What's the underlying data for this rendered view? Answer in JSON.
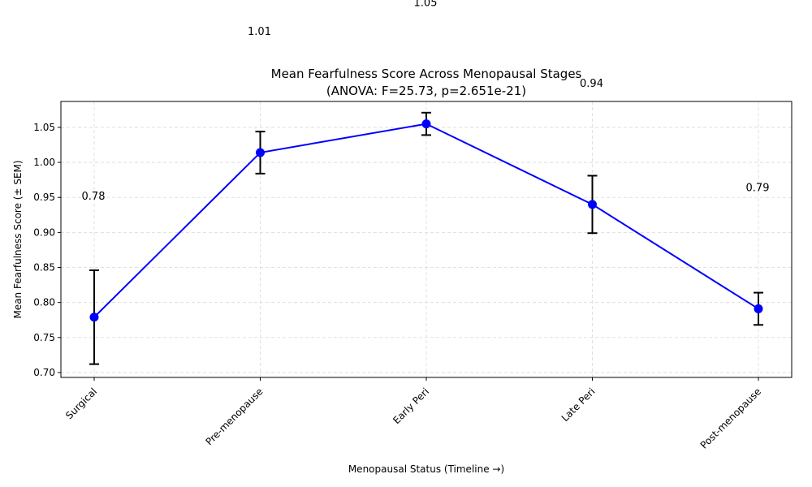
{
  "chart_data": {
    "type": "line",
    "title": "Mean Fearfulness Score Across Menopausal Stages",
    "subtitle": "(ANOVA: F=25.73, p=2.651e-21)",
    "xlabel": "Menopausal Status (Timeline →)",
    "ylabel": "Mean Fearfulness Score (± SEM)",
    "categories": [
      "Surgical",
      "Pre-menopause",
      "Early Peri",
      "Late Peri",
      "Post-menopause"
    ],
    "series": [
      {
        "values": [
          0.779,
          1.014,
          1.055,
          0.94,
          0.791
        ],
        "sem": [
          0.067,
          0.03,
          0.016,
          0.041,
          0.023
        ],
        "color": "#0000ff"
      }
    ],
    "data_labels": [
      "0.78",
      "1.01",
      "1.05",
      "0.94",
      "0.79"
    ],
    "yticks": [
      "0.70",
      "0.75",
      "0.80",
      "0.85",
      "0.90",
      "0.95",
      "1.00",
      "1.05"
    ],
    "ylim": [
      0.693,
      1.087
    ],
    "grid": true,
    "errorbar_color": "#000000"
  }
}
